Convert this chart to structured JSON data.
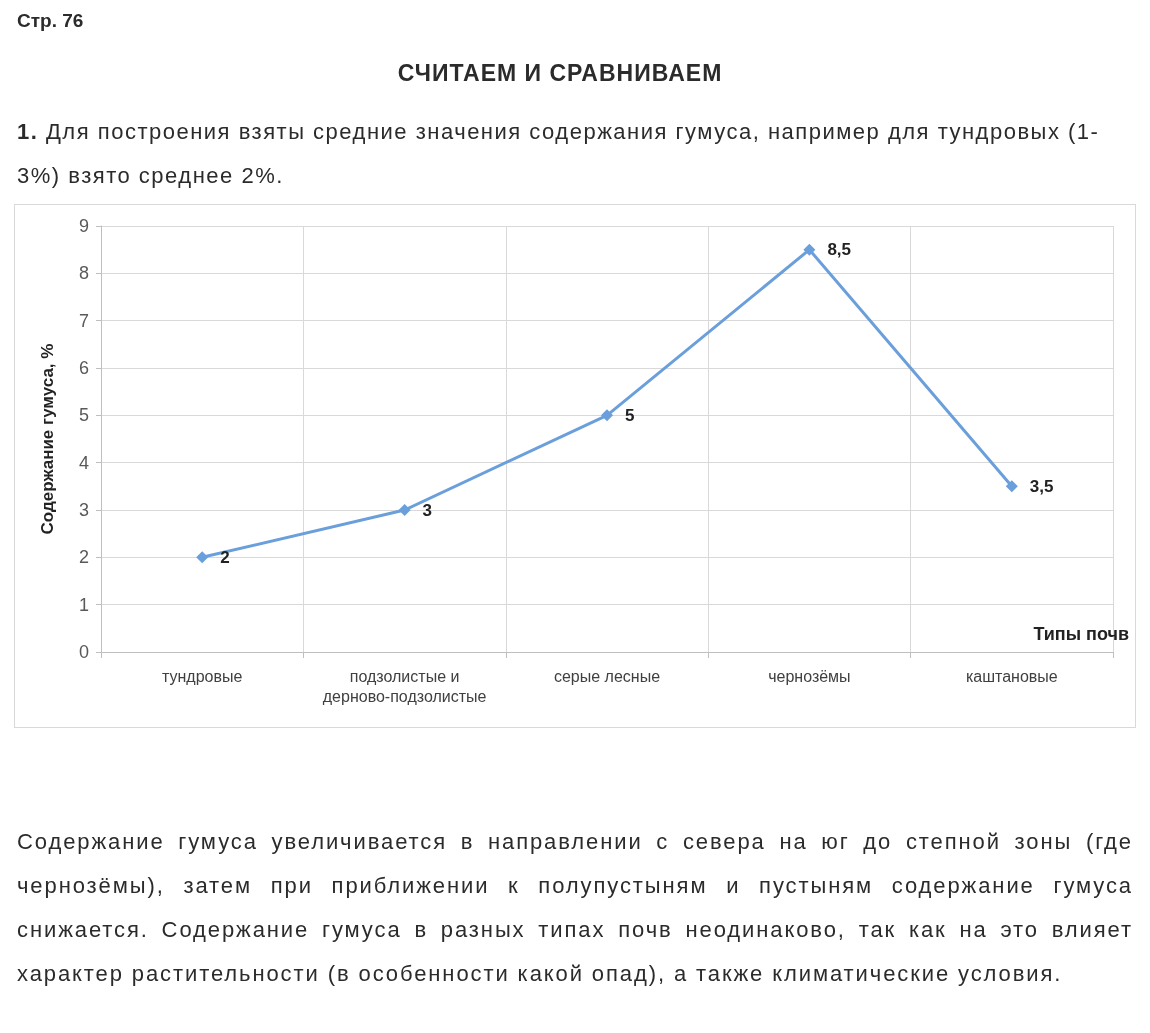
{
  "chart_data": {
    "type": "line",
    "title": "СЧИТАЕМ И СРАВНИВАЕМ",
    "subtitle": "1. Для построения взяты средние значения содержания гумуса, например для тундровых (1-3%) взято среднее 2%.",
    "annotations": [
      "Стр. 76",
      "Содержание гумуса увеличивается в направлении с севера на юг до степной зоны (где чернозёмы), затем при приближении к полупустыням и пустыням содержание гумуса снижается. Содержание гумуса в разных типах почв неодинаково, так как на это влияет характер растительности (в особенности какой опад), а также климатические условия."
    ],
    "xlabel": "Типы почв",
    "ylabel": "Содержание гумуса, %",
    "categories": [
      "тундровые",
      "подзолистые и дерново-подзолистые",
      "серые лесные",
      "чернозёмы",
      "каштановые"
    ],
    "values": [
      2,
      3,
      5,
      8.5,
      3.5
    ],
    "value_labels": [
      "2",
      "3",
      "5",
      "8,5",
      "3,5"
    ],
    "color": "#6a9fdc",
    "ylim": [
      0,
      9
    ],
    "yticks": [
      0,
      1,
      2,
      3,
      4,
      5,
      6,
      7,
      8,
      9
    ],
    "grid": true,
    "marker": "diamond"
  }
}
